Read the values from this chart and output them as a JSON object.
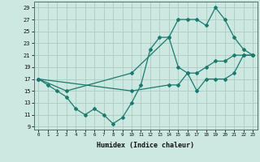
{
  "xlabel": "Humidex (Indice chaleur)",
  "ylabel": "",
  "bg_color": "#cce8e0",
  "grid_color": "#aaccC4",
  "line_color": "#1a7a6e",
  "marker": "D",
  "marker_size": 2.0,
  "line_width": 0.9,
  "xlim": [
    -0.5,
    23.5
  ],
  "ylim": [
    8.5,
    30
  ],
  "xticks": [
    0,
    1,
    2,
    3,
    4,
    5,
    6,
    7,
    8,
    9,
    10,
    11,
    12,
    13,
    14,
    15,
    16,
    17,
    18,
    19,
    20,
    21,
    22,
    23
  ],
  "yticks": [
    9,
    11,
    13,
    15,
    17,
    19,
    21,
    23,
    25,
    27,
    29
  ],
  "line1_x": [
    0,
    1,
    2,
    3,
    4,
    5,
    6,
    7,
    8,
    9,
    10,
    11,
    12,
    13,
    14,
    15,
    16,
    17,
    18,
    19,
    20,
    21,
    22,
    23
  ],
  "line1_y": [
    17,
    16,
    15,
    14,
    12,
    11,
    12,
    11,
    9.5,
    10.5,
    13,
    16,
    22,
    24,
    24,
    19,
    18,
    15,
    17,
    17,
    17,
    18,
    21,
    21
  ],
  "line2_x": [
    0,
    3,
    10,
    14,
    15,
    16,
    17,
    18,
    19,
    20,
    21,
    22,
    23
  ],
  "line2_y": [
    17,
    15,
    18,
    24,
    27,
    27,
    27,
    26,
    29,
    27,
    24,
    22,
    21
  ],
  "line3_x": [
    0,
    10,
    14,
    15,
    16,
    17,
    18,
    19,
    20,
    21,
    22,
    23
  ],
  "line3_y": [
    17,
    15,
    16,
    16,
    18,
    18,
    19,
    20,
    20,
    21,
    21,
    21
  ]
}
